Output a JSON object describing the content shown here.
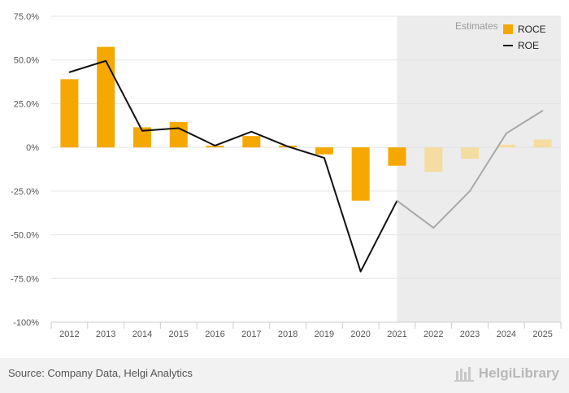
{
  "chart_data": {
    "type": "bar",
    "categories": [
      "2012",
      "2013",
      "2014",
      "2015",
      "2016",
      "2017",
      "2018",
      "2019",
      "2020",
      "2021",
      "2022",
      "2023",
      "2024",
      "2025"
    ],
    "ylim": [
      -100,
      75
    ],
    "y_ticks": [
      75,
      50,
      25,
      0,
      -25,
      -50,
      -75,
      -100
    ],
    "y_tick_labels": [
      "75.0%",
      "50.0%",
      "25.0%",
      "0%",
      "-25.0%",
      "-50.0%",
      "-75.0%",
      "-100%"
    ],
    "grid": true,
    "estimates_label": "Estimates",
    "estimates_from": "2021",
    "legend_position": "top-right",
    "series": [
      {
        "name": "ROCE",
        "type": "bar",
        "color": "#f5a800",
        "estimate_color": "#f5dca0",
        "values": [
          39,
          57.5,
          11.5,
          14.5,
          1,
          6.5,
          1,
          -4,
          -30.5,
          -10.5,
          -14,
          -6.5,
          1.5,
          4.5
        ]
      },
      {
        "name": "ROE",
        "type": "line",
        "color": "#111111",
        "estimate_color": "#a8a8a8",
        "values": [
          43,
          49.5,
          9.5,
          11,
          1,
          9,
          0.5,
          -6,
          -71,
          -30.5,
          -46,
          -25,
          8,
          21
        ]
      }
    ]
  },
  "footer": {
    "source": "Source: Company Data, Helgi Analytics",
    "brand": "HelgiLibrary"
  }
}
